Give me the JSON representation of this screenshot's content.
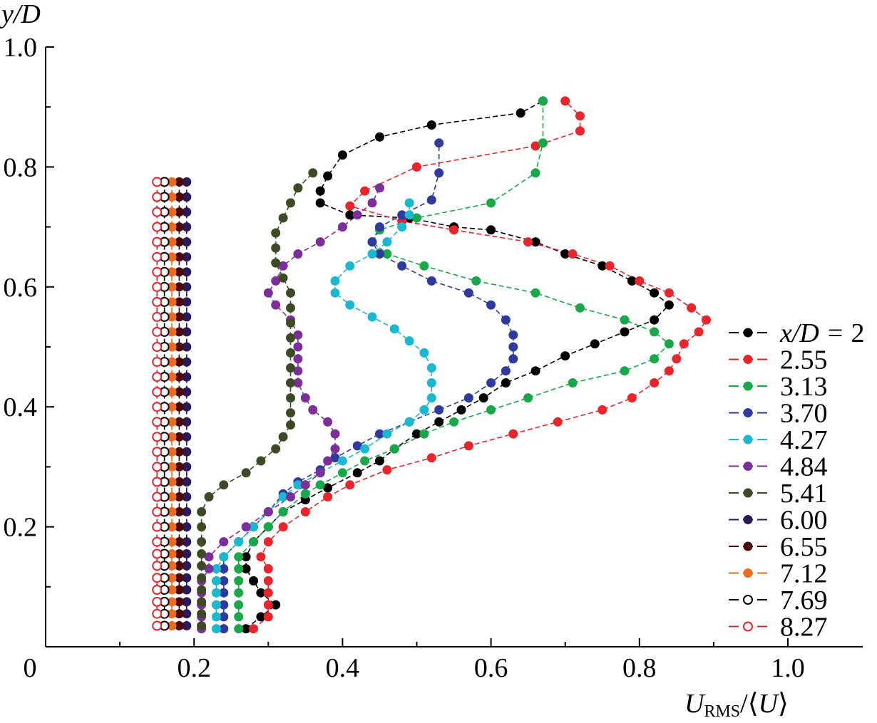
{
  "chart_data": {
    "type": "line",
    "ylabel": "y/D",
    "xlabel_parts": [
      "U",
      "RMS",
      "/⟨",
      "U",
      "⟩"
    ],
    "xlim": [
      0,
      1.05
    ],
    "ylim": [
      0,
      1.0
    ],
    "x_tick_values": [
      0,
      0.2,
      0.4,
      0.6,
      0.8,
      1.0
    ],
    "x_tick_labels": [
      "0",
      "0.2",
      "0.4",
      "0.6",
      "0.8",
      "1.0"
    ],
    "y_tick_values": [
      0.2,
      0.4,
      0.6,
      0.8,
      1.0
    ],
    "y_tick_labels": [
      "0.2",
      "0.4",
      "0.6",
      "0.8",
      "1.0"
    ],
    "legend_prefix": "x/D = ",
    "legend_position": "right",
    "series": [
      {
        "name": "2",
        "color": "#000000",
        "marker": "filled",
        "x": [
          0.27,
          0.29,
          0.31,
          0.29,
          0.28,
          0.27,
          0.27,
          0.28,
          0.3,
          0.32,
          0.35,
          0.38,
          0.42,
          0.45,
          0.47,
          0.5,
          0.53,
          0.56,
          0.59,
          0.62,
          0.66,
          0.7,
          0.74,
          0.78,
          0.82,
          0.84,
          0.82,
          0.79,
          0.75,
          0.7,
          0.66,
          0.6,
          0.55,
          0.49,
          0.41,
          0.37,
          0.37,
          0.38,
          0.4,
          0.45,
          0.52,
          0.64,
          0.67
        ],
        "y": [
          0.03,
          0.05,
          0.07,
          0.09,
          0.11,
          0.13,
          0.15,
          0.175,
          0.2,
          0.225,
          0.245,
          0.265,
          0.29,
          0.31,
          0.33,
          0.355,
          0.375,
          0.395,
          0.415,
          0.44,
          0.46,
          0.485,
          0.505,
          0.525,
          0.545,
          0.57,
          0.59,
          0.61,
          0.635,
          0.655,
          0.675,
          0.695,
          0.7,
          0.715,
          0.72,
          0.74,
          0.76,
          0.785,
          0.82,
          0.85,
          0.87,
          0.89,
          0.91
        ]
      },
      {
        "name": "2.55",
        "color": "#e8252a",
        "marker": "filled",
        "x": [
          0.28,
          0.3,
          0.3,
          0.3,
          0.3,
          0.3,
          0.29,
          0.3,
          0.32,
          0.35,
          0.38,
          0.41,
          0.46,
          0.52,
          0.57,
          0.63,
          0.69,
          0.75,
          0.79,
          0.82,
          0.84,
          0.85,
          0.86,
          0.88,
          0.89,
          0.87,
          0.84,
          0.8,
          0.76,
          0.71,
          0.65,
          0.55,
          0.48,
          0.41,
          0.43,
          0.5,
          0.66,
          0.72,
          0.72,
          0.7
        ],
        "y": [
          0.03,
          0.05,
          0.07,
          0.09,
          0.11,
          0.13,
          0.15,
          0.175,
          0.2,
          0.225,
          0.25,
          0.27,
          0.295,
          0.315,
          0.335,
          0.355,
          0.375,
          0.395,
          0.415,
          0.44,
          0.46,
          0.48,
          0.505,
          0.525,
          0.545,
          0.565,
          0.59,
          0.61,
          0.635,
          0.655,
          0.675,
          0.695,
          0.71,
          0.735,
          0.76,
          0.8,
          0.835,
          0.86,
          0.885,
          0.91
        ]
      },
      {
        "name": "3.13",
        "color": "#18a84a",
        "marker": "filled",
        "x": [
          0.26,
          0.26,
          0.26,
          0.26,
          0.26,
          0.26,
          0.26,
          0.28,
          0.3,
          0.32,
          0.35,
          0.37,
          0.4,
          0.43,
          0.47,
          0.51,
          0.55,
          0.6,
          0.65,
          0.71,
          0.78,
          0.82,
          0.84,
          0.82,
          0.78,
          0.72,
          0.66,
          0.58,
          0.51,
          0.46,
          0.44,
          0.45,
          0.5,
          0.6,
          0.66,
          0.67,
          0.67
        ],
        "y": [
          0.03,
          0.05,
          0.07,
          0.09,
          0.11,
          0.13,
          0.15,
          0.175,
          0.2,
          0.225,
          0.255,
          0.27,
          0.29,
          0.31,
          0.33,
          0.355,
          0.375,
          0.395,
          0.415,
          0.44,
          0.46,
          0.48,
          0.505,
          0.525,
          0.545,
          0.565,
          0.59,
          0.61,
          0.635,
          0.655,
          0.675,
          0.695,
          0.715,
          0.74,
          0.79,
          0.84,
          0.91
        ]
      },
      {
        "name": "3.70",
        "color": "#2f3a9e",
        "marker": "filled",
        "x": [
          0.24,
          0.24,
          0.24,
          0.24,
          0.24,
          0.24,
          0.24,
          0.26,
          0.28,
          0.3,
          0.32,
          0.34,
          0.37,
          0.39,
          0.42,
          0.45,
          0.49,
          0.53,
          0.57,
          0.6,
          0.62,
          0.63,
          0.63,
          0.63,
          0.62,
          0.6,
          0.57,
          0.52,
          0.48,
          0.45,
          0.44,
          0.45,
          0.48,
          0.52,
          0.53,
          0.53
        ],
        "y": [
          0.03,
          0.05,
          0.07,
          0.09,
          0.11,
          0.13,
          0.15,
          0.175,
          0.2,
          0.225,
          0.255,
          0.275,
          0.295,
          0.315,
          0.335,
          0.355,
          0.375,
          0.395,
          0.415,
          0.44,
          0.46,
          0.48,
          0.5,
          0.52,
          0.545,
          0.57,
          0.59,
          0.61,
          0.635,
          0.655,
          0.675,
          0.7,
          0.72,
          0.745,
          0.79,
          0.84
        ]
      },
      {
        "name": "4.27",
        "color": "#1bb8d0",
        "marker": "filled",
        "x": [
          0.23,
          0.23,
          0.23,
          0.23,
          0.23,
          0.23,
          0.24,
          0.26,
          0.28,
          0.3,
          0.32,
          0.34,
          0.37,
          0.4,
          0.43,
          0.46,
          0.49,
          0.51,
          0.52,
          0.52,
          0.52,
          0.51,
          0.49,
          0.47,
          0.44,
          0.41,
          0.39,
          0.39,
          0.41,
          0.44,
          0.46,
          0.48,
          0.49,
          0.49
        ],
        "y": [
          0.03,
          0.05,
          0.07,
          0.09,
          0.11,
          0.13,
          0.15,
          0.175,
          0.2,
          0.225,
          0.25,
          0.27,
          0.29,
          0.31,
          0.33,
          0.355,
          0.375,
          0.395,
          0.415,
          0.44,
          0.465,
          0.49,
          0.51,
          0.53,
          0.55,
          0.57,
          0.59,
          0.61,
          0.635,
          0.655,
          0.675,
          0.7,
          0.72,
          0.74
        ]
      },
      {
        "name": "4.84",
        "color": "#7b2f9a",
        "marker": "filled",
        "x": [
          0.21,
          0.21,
          0.21,
          0.21,
          0.21,
          0.22,
          0.22,
          0.24,
          0.27,
          0.3,
          0.33,
          0.35,
          0.37,
          0.38,
          0.39,
          0.39,
          0.38,
          0.36,
          0.35,
          0.34,
          0.34,
          0.34,
          0.34,
          0.34,
          0.33,
          0.31,
          0.3,
          0.31,
          0.32,
          0.34,
          0.37,
          0.4,
          0.42,
          0.44,
          0.45
        ],
        "y": [
          0.03,
          0.05,
          0.07,
          0.09,
          0.11,
          0.13,
          0.15,
          0.175,
          0.2,
          0.225,
          0.25,
          0.27,
          0.29,
          0.31,
          0.33,
          0.355,
          0.375,
          0.395,
          0.415,
          0.44,
          0.46,
          0.48,
          0.5,
          0.52,
          0.545,
          0.57,
          0.59,
          0.61,
          0.635,
          0.655,
          0.675,
          0.7,
          0.72,
          0.74,
          0.765
        ]
      },
      {
        "name": "5.41",
        "color": "#3d4a25",
        "marker": "filled",
        "x": [
          0.21,
          0.21,
          0.21,
          0.21,
          0.21,
          0.21,
          0.21,
          0.21,
          0.21,
          0.21,
          0.22,
          0.24,
          0.27,
          0.29,
          0.31,
          0.32,
          0.33,
          0.33,
          0.33,
          0.33,
          0.33,
          0.33,
          0.33,
          0.33,
          0.33,
          0.33,
          0.32,
          0.31,
          0.31,
          0.31,
          0.32,
          0.33,
          0.34,
          0.36
        ],
        "y": [
          0.035,
          0.055,
          0.075,
          0.095,
          0.115,
          0.135,
          0.155,
          0.175,
          0.2,
          0.225,
          0.25,
          0.27,
          0.29,
          0.31,
          0.33,
          0.35,
          0.37,
          0.39,
          0.415,
          0.44,
          0.465,
          0.49,
          0.515,
          0.54,
          0.565,
          0.59,
          0.615,
          0.64,
          0.665,
          0.69,
          0.715,
          0.74,
          0.765,
          0.79
        ]
      },
      {
        "name": "6.00",
        "color": "#2a1a5a",
        "marker": "filled",
        "x": [
          0.19,
          0.19,
          0.19,
          0.19,
          0.19,
          0.19,
          0.19,
          0.19,
          0.19,
          0.19,
          0.19,
          0.19,
          0.19,
          0.19,
          0.19,
          0.19,
          0.19,
          0.19,
          0.19,
          0.19,
          0.19,
          0.19,
          0.19,
          0.19,
          0.19,
          0.19,
          0.19,
          0.19,
          0.19,
          0.19,
          0.19,
          0.19
        ],
        "y": [
          0.035,
          0.055,
          0.075,
          0.095,
          0.115,
          0.135,
          0.155,
          0.175,
          0.2,
          0.225,
          0.25,
          0.275,
          0.3,
          0.325,
          0.35,
          0.375,
          0.4,
          0.425,
          0.45,
          0.475,
          0.5,
          0.525,
          0.55,
          0.575,
          0.6,
          0.625,
          0.65,
          0.675,
          0.7,
          0.725,
          0.75,
          0.775
        ]
      },
      {
        "name": "6.55",
        "color": "#4a0a0a",
        "marker": "filled",
        "x": [
          0.18,
          0.18,
          0.18,
          0.18,
          0.18,
          0.18,
          0.18,
          0.18,
          0.18,
          0.18,
          0.18,
          0.18,
          0.18,
          0.18,
          0.18,
          0.18,
          0.18,
          0.18,
          0.18,
          0.18,
          0.18,
          0.18,
          0.18,
          0.18,
          0.18,
          0.18,
          0.18,
          0.18,
          0.18,
          0.18,
          0.18,
          0.18
        ],
        "y": [
          0.035,
          0.055,
          0.075,
          0.095,
          0.115,
          0.135,
          0.155,
          0.175,
          0.2,
          0.225,
          0.25,
          0.275,
          0.3,
          0.325,
          0.35,
          0.375,
          0.4,
          0.425,
          0.45,
          0.475,
          0.5,
          0.525,
          0.55,
          0.575,
          0.6,
          0.625,
          0.65,
          0.675,
          0.7,
          0.725,
          0.75,
          0.775
        ]
      },
      {
        "name": "7.12",
        "color": "#f06a1e",
        "marker": "filled",
        "x": [
          0.17,
          0.17,
          0.17,
          0.17,
          0.17,
          0.17,
          0.17,
          0.17,
          0.17,
          0.17,
          0.17,
          0.17,
          0.17,
          0.17,
          0.17,
          0.17,
          0.17,
          0.17,
          0.17,
          0.17,
          0.17,
          0.17,
          0.17,
          0.17,
          0.17,
          0.17,
          0.17,
          0.17,
          0.17,
          0.17,
          0.17,
          0.17
        ],
        "y": [
          0.035,
          0.055,
          0.075,
          0.095,
          0.115,
          0.135,
          0.155,
          0.175,
          0.2,
          0.225,
          0.25,
          0.275,
          0.3,
          0.325,
          0.35,
          0.375,
          0.4,
          0.425,
          0.45,
          0.475,
          0.5,
          0.525,
          0.55,
          0.575,
          0.6,
          0.625,
          0.65,
          0.675,
          0.7,
          0.725,
          0.75,
          0.775
        ]
      },
      {
        "name": "7.69",
        "color": "#000000",
        "marker": "open",
        "x": [
          0.16,
          0.16,
          0.16,
          0.16,
          0.16,
          0.16,
          0.16,
          0.16,
          0.16,
          0.16,
          0.16,
          0.16,
          0.16,
          0.16,
          0.16,
          0.16,
          0.16,
          0.16,
          0.16,
          0.16,
          0.16,
          0.16,
          0.16,
          0.16,
          0.16,
          0.16,
          0.16,
          0.16,
          0.16,
          0.16,
          0.16,
          0.16
        ],
        "y": [
          0.035,
          0.055,
          0.075,
          0.095,
          0.115,
          0.135,
          0.155,
          0.175,
          0.2,
          0.225,
          0.25,
          0.275,
          0.3,
          0.325,
          0.35,
          0.375,
          0.4,
          0.425,
          0.45,
          0.475,
          0.5,
          0.525,
          0.55,
          0.575,
          0.6,
          0.625,
          0.65,
          0.675,
          0.7,
          0.725,
          0.75,
          0.775
        ]
      },
      {
        "name": "8.27",
        "color": "#e8252a",
        "marker": "open",
        "x": [
          0.15,
          0.15,
          0.15,
          0.15,
          0.15,
          0.15,
          0.15,
          0.15,
          0.15,
          0.15,
          0.15,
          0.15,
          0.15,
          0.15,
          0.15,
          0.15,
          0.15,
          0.15,
          0.15,
          0.15,
          0.15,
          0.15,
          0.15,
          0.15,
          0.15,
          0.15,
          0.15,
          0.15,
          0.15,
          0.15,
          0.15,
          0.15
        ],
        "y": [
          0.035,
          0.055,
          0.075,
          0.095,
          0.115,
          0.135,
          0.155,
          0.175,
          0.2,
          0.225,
          0.25,
          0.275,
          0.3,
          0.325,
          0.35,
          0.375,
          0.4,
          0.425,
          0.45,
          0.475,
          0.5,
          0.525,
          0.55,
          0.575,
          0.6,
          0.625,
          0.65,
          0.675,
          0.7,
          0.725,
          0.75,
          0.775
        ]
      }
    ]
  }
}
